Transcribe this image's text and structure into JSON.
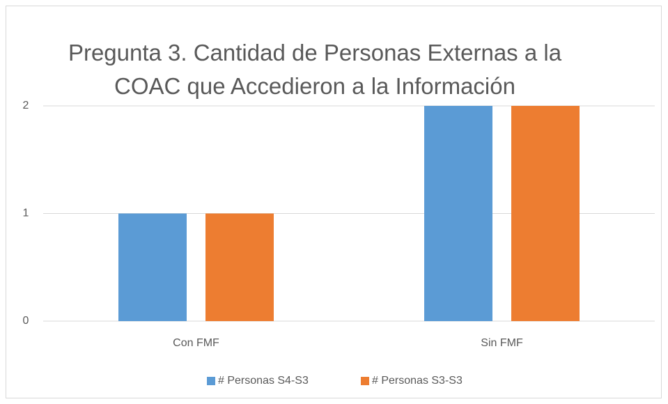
{
  "chart_data": {
    "type": "bar",
    "title": "Pregunta 3. Cantidad de Personas Externas a la COAC que Accedieron a la Información",
    "categories": [
      "Con FMF",
      "Sin FMF"
    ],
    "series": [
      {
        "name": "# Personas S4-S3",
        "color": "#5b9bd5",
        "values": [
          1,
          2
        ]
      },
      {
        "name": "# Personas S3-S3",
        "color": "#ed7d31",
        "values": [
          1,
          2
        ]
      }
    ],
    "ylim": [
      0,
      2
    ],
    "yticks": [
      0,
      1,
      2
    ],
    "grid": true,
    "legend": "bottom"
  }
}
